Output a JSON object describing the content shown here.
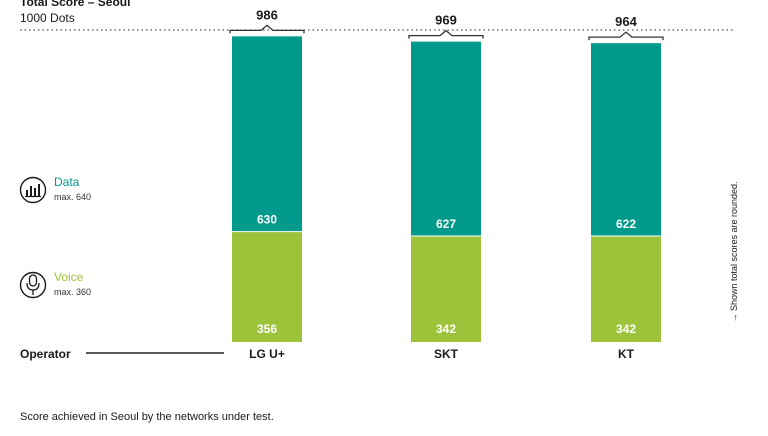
{
  "chart_data": {
    "type": "bar",
    "stacked": true,
    "title": "Total Score – Seoul",
    "subtitle": "1000 Dots",
    "categories": [
      "LG U+",
      "SKT",
      "KT"
    ],
    "series": [
      {
        "name": "Voice",
        "max_label": "max. 360",
        "values": [
          356,
          342,
          342
        ],
        "color": "#9dc33b"
      },
      {
        "name": "Data",
        "max_label": "max. 640",
        "values": [
          630,
          627,
          622
        ],
        "color": "#009a8c"
      }
    ],
    "totals": [
      986,
      969,
      964
    ],
    "ymax": 1000,
    "axis_label": "Operator",
    "side_note": "→ Shown total scores are rounded.",
    "footnote": "Score achieved in Seoul by the networks under test.",
    "legend_position": "left",
    "icons": {
      "data": "bar-chart-icon",
      "voice": "microphone-icon"
    }
  }
}
